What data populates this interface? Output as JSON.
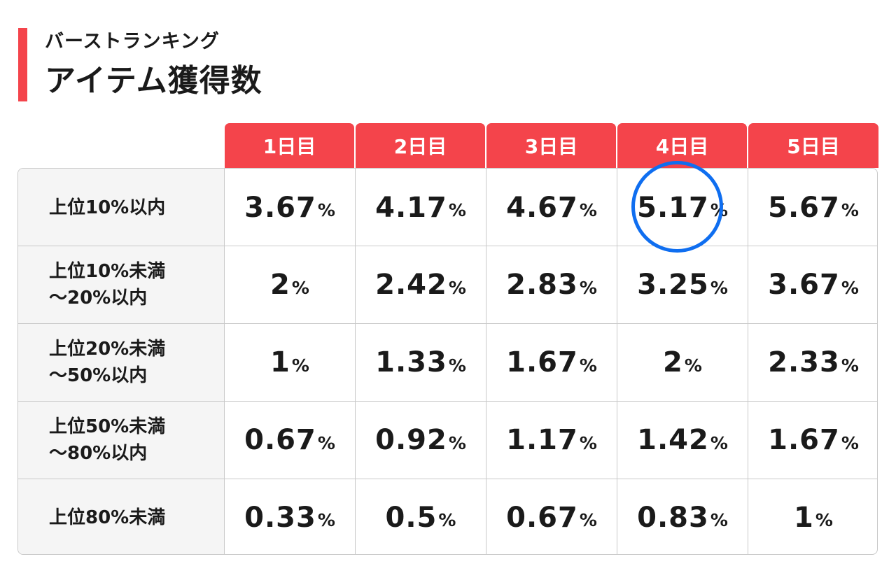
{
  "header": {
    "subtitle": "バーストランキング",
    "title": "アイテム獲得数"
  },
  "table": {
    "columns": [
      "1日目",
      "2日目",
      "3日目",
      "4日目",
      "5日目"
    ],
    "percent_unit": "%",
    "rows": [
      {
        "label": "上位10%以内",
        "values": [
          "3.67",
          "4.17",
          "4.67",
          "5.17",
          "5.67"
        ]
      },
      {
        "label": "上位10%未満\n～20%以内",
        "values": [
          "2",
          "2.42",
          "2.83",
          "3.25",
          "3.67"
        ]
      },
      {
        "label": "上位20%未満\n～50%以内",
        "values": [
          "1",
          "1.33",
          "1.67",
          "2",
          "2.33"
        ]
      },
      {
        "label": "上位50%未満\n～80%以内",
        "values": [
          "0.67",
          "0.92",
          "1.17",
          "1.42",
          "1.67"
        ]
      },
      {
        "label": "上位80%未満",
        "values": [
          "0.33",
          "0.5",
          "0.67",
          "0.83",
          "1"
        ]
      }
    ]
  },
  "highlight": {
    "row": 0,
    "column": 3,
    "color": "#0f6ef0"
  },
  "colors": {
    "accent": "#f4444b",
    "label_bg": "#f5f5f5",
    "border": "#c9c9c9"
  }
}
